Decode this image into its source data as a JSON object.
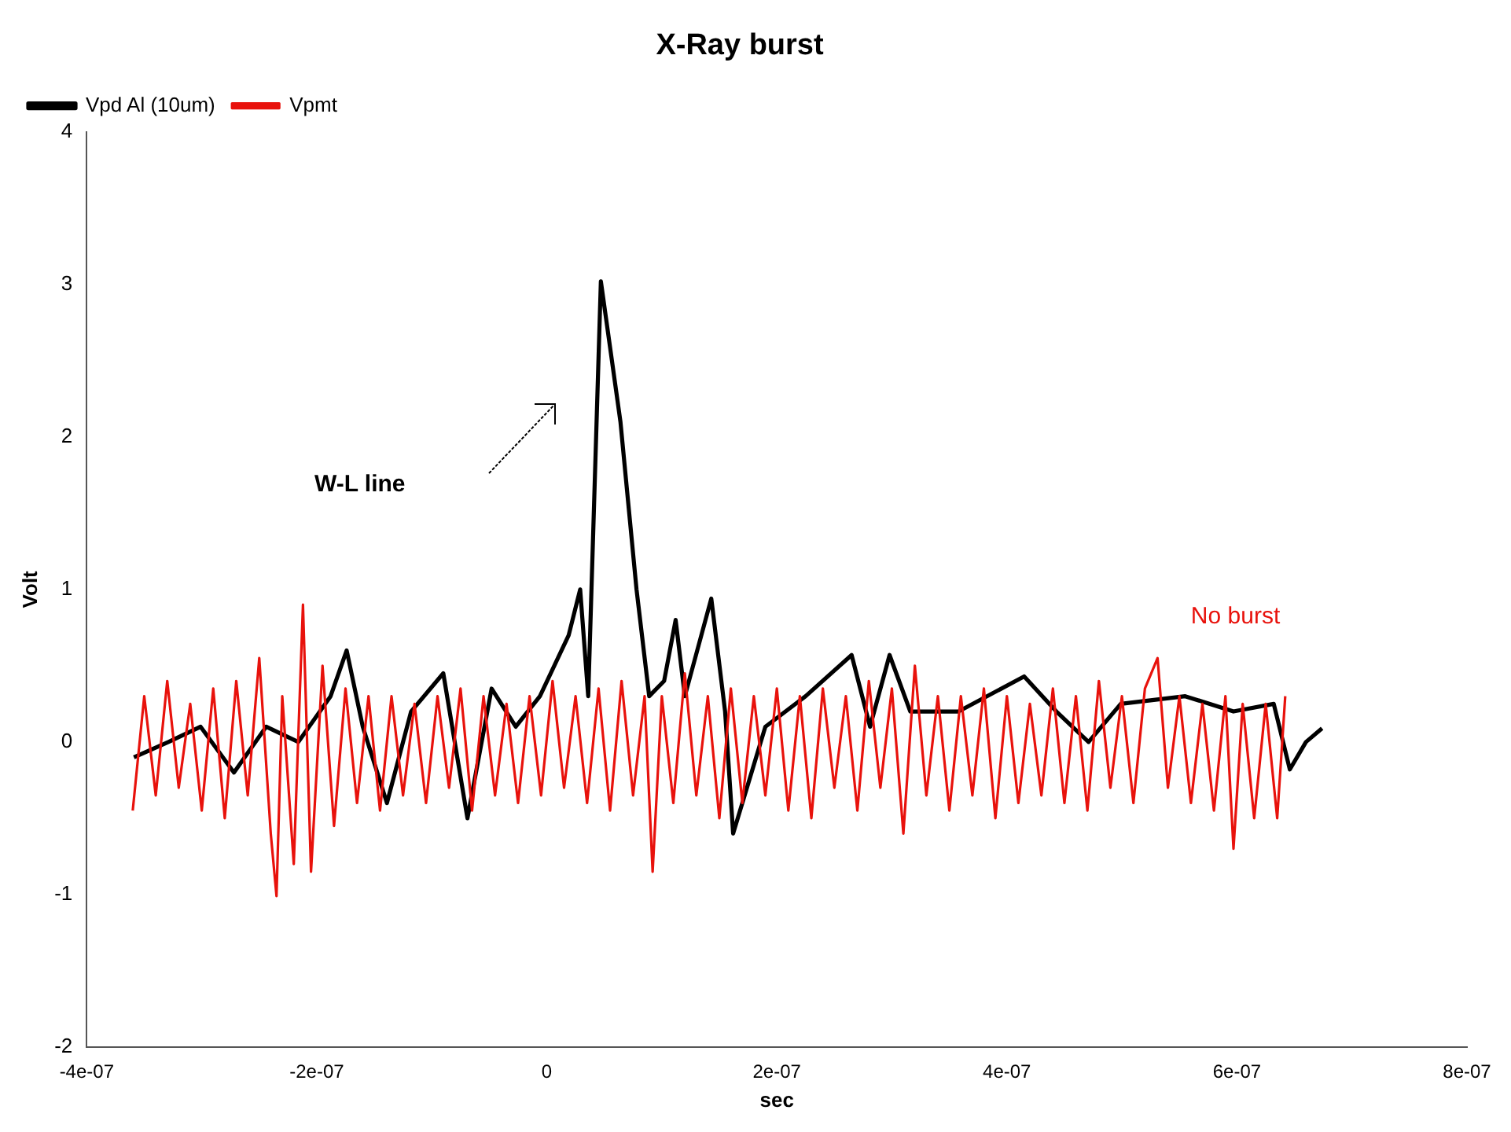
{
  "chart_data": {
    "type": "line",
    "title": "X-Ray burst",
    "xlabel": "sec",
    "ylabel": "Volt",
    "xlim": [
      -4e-07,
      8e-07
    ],
    "xticks": [
      -4e-07,
      -2e-07,
      0,
      2e-07,
      4e-07,
      6e-07,
      8e-07
    ],
    "ylim": [
      -2,
      4
    ],
    "yticks": [
      -2,
      -1,
      0,
      1,
      2,
      3,
      4
    ],
    "grid": false,
    "legend": "top left",
    "marker": "none",
    "line_style": "solid",
    "annotations": [
      "W-L line",
      "No burst"
    ],
    "series": [
      {
        "name": "Vpd Al (10um)",
        "color": "#000000",
        "x": [
          -3.59e-07,
          -3.29e-07,
          -3.01e-07,
          -2.72e-07,
          -2.44e-07,
          -2.16e-07,
          -1.88e-07,
          -1.74e-07,
          -1.6e-07,
          -1.39e-07,
          -1.18e-07,
          -9e-08,
          -6.9e-08,
          -4.8e-08,
          -2.7e-08,
          -6e-09,
          1.9e-08,
          2.9e-08,
          3.6e-08,
          4.7e-08,
          6.4e-08,
          7.8e-08,
          8.9e-08,
          1.02e-07,
          1.12e-07,
          1.2e-07,
          1.43e-07,
          1.55e-07,
          1.62e-07,
          1.9e-07,
          2.25e-07,
          2.65e-07,
          2.81e-07,
          2.98e-07,
          3.16e-07,
          3.58e-07,
          4.15e-07,
          4.43e-07,
          4.71e-07,
          4.99e-07,
          5.55e-07,
          5.97e-07,
          6.32e-07,
          6.46e-07,
          6.6e-07,
          6.74e-07
        ],
        "values": [
          -0.1,
          0.0,
          0.1,
          -0.2,
          0.1,
          0.0,
          0.3,
          0.6,
          0.1,
          -0.4,
          0.2,
          0.45,
          -0.5,
          0.35,
          0.1,
          0.3,
          0.7,
          1.0,
          0.3,
          3.02,
          2.1,
          1.0,
          0.3,
          0.4,
          0.8,
          0.3,
          0.94,
          0.2,
          -0.6,
          0.1,
          0.3,
          0.57,
          0.1,
          0.57,
          0.2,
          0.2,
          0.43,
          0.2,
          0.0,
          0.25,
          0.3,
          0.2,
          0.25,
          -0.18,
          0.0,
          0.09
        ]
      },
      {
        "name": "Vpmt",
        "color": "#e8120c",
        "x": [
          -3.6e-07,
          -3.5e-07,
          -3.4e-07,
          -3.3e-07,
          -3.2e-07,
          -3.1e-07,
          -3e-07,
          -2.9e-07,
          -2.8e-07,
          -2.7e-07,
          -2.6e-07,
          -2.5e-07,
          -2.4e-07,
          -2.35e-07,
          -2.3e-07,
          -2.2e-07,
          -2.12e-07,
          -2.05e-07,
          -1.95e-07,
          -1.85e-07,
          -1.75e-07,
          -1.65e-07,
          -1.55e-07,
          -1.45e-07,
          -1.35e-07,
          -1.25e-07,
          -1.15e-07,
          -1.05e-07,
          -9.5e-08,
          -8.5e-08,
          -7.5e-08,
          -6.5e-08,
          -5.5e-08,
          -4.5e-08,
          -3.5e-08,
          -2.5e-08,
          -1.5e-08,
          -5e-09,
          5e-09,
          1.5e-08,
          2.5e-08,
          3.5e-08,
          4.5e-08,
          5.5e-08,
          6.5e-08,
          7.5e-08,
          8.5e-08,
          9.2e-08,
          1e-07,
          1.1e-07,
          1.2e-07,
          1.3e-07,
          1.4e-07,
          1.5e-07,
          1.6e-07,
          1.7e-07,
          1.8e-07,
          1.9e-07,
          2e-07,
          2.1e-07,
          2.2e-07,
          2.3e-07,
          2.4e-07,
          2.5e-07,
          2.6e-07,
          2.7e-07,
          2.8e-07,
          2.9e-07,
          3e-07,
          3.1e-07,
          3.2e-07,
          3.3e-07,
          3.4e-07,
          3.5e-07,
          3.6e-07,
          3.7e-07,
          3.8e-07,
          3.9e-07,
          4e-07,
          4.1e-07,
          4.2e-07,
          4.3e-07,
          4.4e-07,
          4.5e-07,
          4.6e-07,
          4.7e-07,
          4.8e-07,
          4.9e-07,
          5e-07,
          5.1e-07,
          5.2e-07,
          5.31e-07,
          5.4e-07,
          5.5e-07,
          5.6e-07,
          5.7e-07,
          5.8e-07,
          5.9e-07,
          5.97e-07,
          6.05e-07,
          6.15e-07,
          6.25e-07,
          6.35e-07,
          6.42e-07
        ],
        "values": [
          -0.45,
          0.3,
          -0.35,
          0.4,
          -0.3,
          0.25,
          -0.45,
          0.35,
          -0.5,
          0.4,
          -0.35,
          0.55,
          -0.6,
          -1.01,
          0.3,
          -0.8,
          0.9,
          -0.85,
          0.5,
          -0.55,
          0.35,
          -0.4,
          0.3,
          -0.45,
          0.3,
          -0.35,
          0.25,
          -0.4,
          0.3,
          -0.3,
          0.35,
          -0.45,
          0.3,
          -0.35,
          0.25,
          -0.4,
          0.3,
          -0.35,
          0.4,
          -0.3,
          0.3,
          -0.4,
          0.35,
          -0.45,
          0.4,
          -0.35,
          0.3,
          -0.85,
          0.3,
          -0.4,
          0.45,
          -0.35,
          0.3,
          -0.5,
          0.35,
          -0.4,
          0.3,
          -0.35,
          0.35,
          -0.45,
          0.3,
          -0.5,
          0.35,
          -0.3,
          0.3,
          -0.45,
          0.4,
          -0.3,
          0.35,
          -0.6,
          0.5,
          -0.35,
          0.3,
          -0.45,
          0.3,
          -0.35,
          0.35,
          -0.5,
          0.3,
          -0.4,
          0.25,
          -0.35,
          0.35,
          -0.4,
          0.3,
          -0.45,
          0.4,
          -0.3,
          0.3,
          -0.4,
          0.35,
          0.55,
          -0.3,
          0.3,
          -0.4,
          0.25,
          -0.45,
          0.3,
          -0.7,
          0.25,
          -0.5,
          0.25,
          -0.5,
          0.3
        ]
      }
    ]
  }
}
